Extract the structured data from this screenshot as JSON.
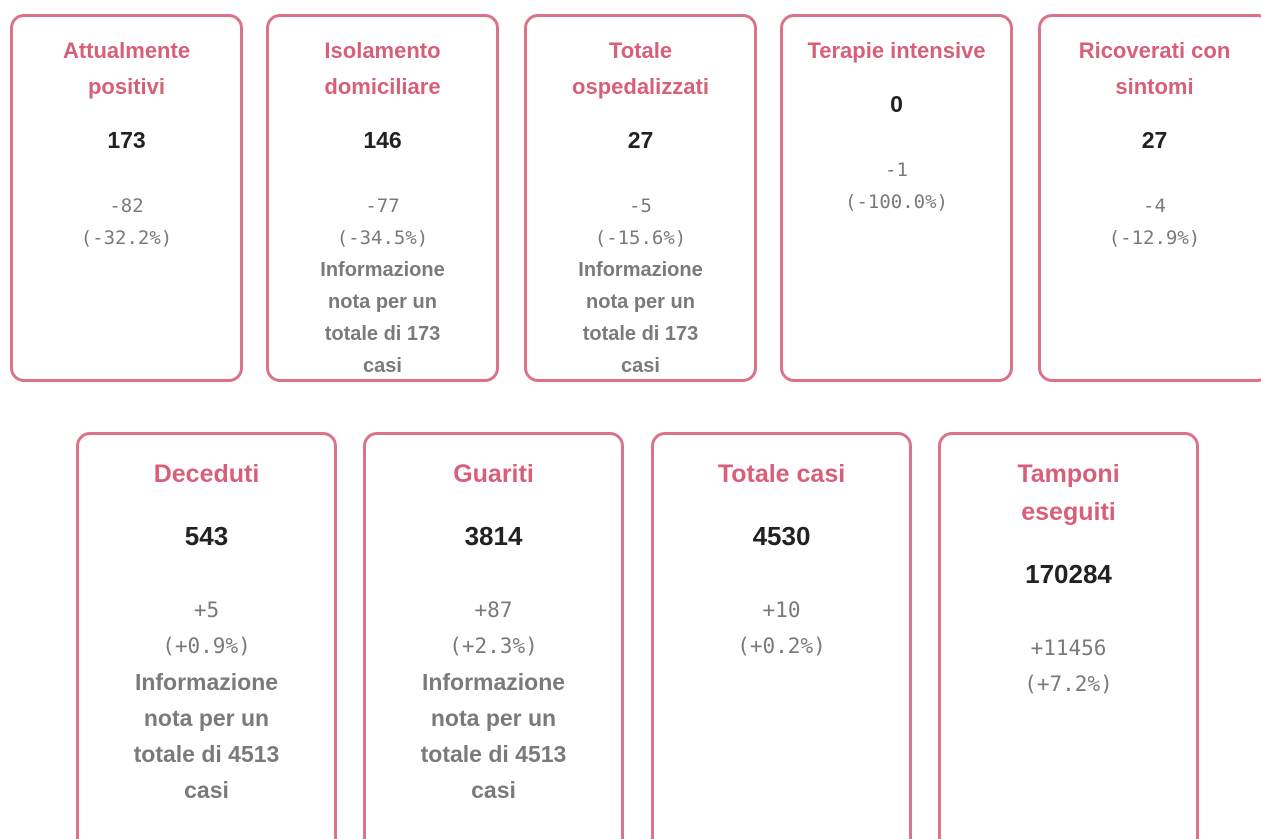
{
  "rows": [
    [
      {
        "title": "Attualmente positivi",
        "value": "173",
        "delta": "-82",
        "pct": "(-32.2%)"
      },
      {
        "title": "Isolamento domiciliare",
        "value": "146",
        "delta": "-77",
        "pct": "(-34.5%)",
        "note": "Informazione nota per un totale di 173 casi"
      },
      {
        "title": "Totale ospedalizzati",
        "value": "27",
        "delta": "-5",
        "pct": "(-15.6%)",
        "note": "Informazione nota per un totale di 173 casi"
      },
      {
        "title": "Terapie intensive",
        "value": "0",
        "delta": "-1",
        "pct": "(-100.0%)"
      },
      {
        "title": "Ricoverati con sintomi",
        "value": "27",
        "delta": "-4",
        "pct": "(-12.9%)"
      }
    ],
    [
      {
        "title": "Deceduti",
        "value": "543",
        "delta": "+5",
        "pct": "(+0.9%)",
        "note": "Informazione nota per un totale di 4513 casi"
      },
      {
        "title": "Guariti",
        "value": "3814",
        "delta": "+87",
        "pct": "(+2.3%)",
        "note": "Informazione nota per un totale di 4513 casi"
      },
      {
        "title": "Totale casi",
        "value": "4530",
        "delta": "+10",
        "pct": "(+0.2%)"
      },
      {
        "title": "Tamponi eseguiti",
        "value": "170284",
        "delta": "+11456",
        "pct": "(+7.2%)"
      }
    ]
  ]
}
